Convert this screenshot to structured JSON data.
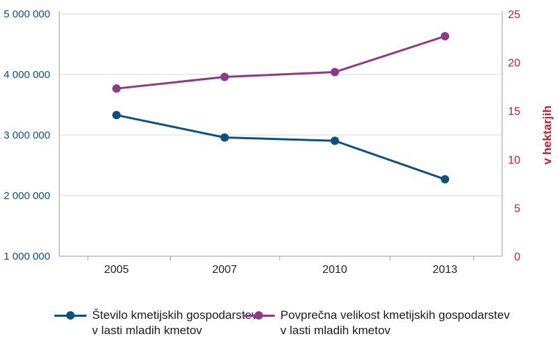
{
  "chart_data": {
    "type": "line",
    "x": [
      "2005",
      "2007",
      "2010",
      "2013"
    ],
    "series": [
      {
        "name": "Število kmetijskih gospodarstev v lasti mladih kmetov",
        "legend_lines": [
          "Število kmetijskih gospodarstev",
          "v lasti mladih kmetov"
        ],
        "axis": "left",
        "color": "#0e4f7c",
        "values": [
          3330000,
          2960000,
          2905000,
          2270000
        ]
      },
      {
        "name": "Povprečna velikost kmetijskih gospodarstev v lasti mladih kmetov",
        "legend_lines": [
          "Povprečna velikost kmetijskih gospodarstev",
          "v lasti mladih kmetov"
        ],
        "axis": "right",
        "color": "#8e3a88",
        "values": [
          17.3,
          18.5,
          19.0,
          22.7
        ]
      }
    ],
    "left_axis": {
      "ylim": [
        1000000,
        5000000
      ],
      "ticks": [
        1000000,
        2000000,
        3000000,
        4000000,
        5000000
      ],
      "tick_labels": [
        "1 000 000",
        "2 000 000",
        "3 000 000",
        "4 000 000",
        "5 000 000"
      ],
      "color": "#0e4f7c"
    },
    "right_axis": {
      "label": "v hektarjih",
      "ylim": [
        0,
        25
      ],
      "ticks": [
        0,
        5,
        10,
        15,
        20,
        25
      ],
      "tick_labels": [
        "0",
        "5",
        "10",
        "15",
        "20",
        "25"
      ],
      "color": "#c0203a"
    },
    "grid": "horizontal",
    "legend_position": "bottom"
  }
}
